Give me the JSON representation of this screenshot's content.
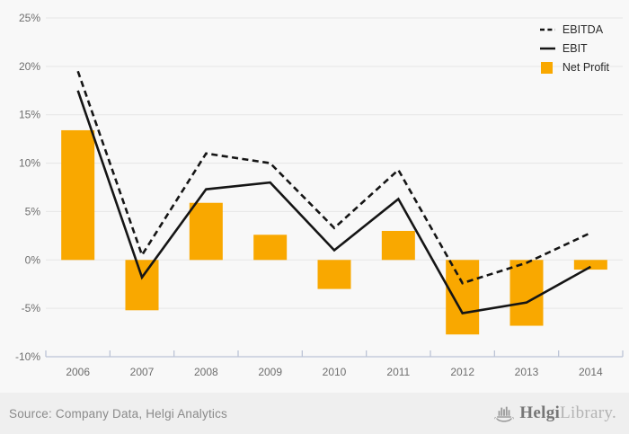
{
  "colors": {
    "background": "#f8f8f8",
    "footer_background": "#efefef",
    "grid": "#e6e6e6",
    "axis_line": "#bcc3d6",
    "bar": "#f9a800",
    "line": "#151515",
    "tick_label": "#6e6e6e",
    "legend_text": "#2b2b2b",
    "source_text": "#8a8a8a",
    "logo_gray": "#9a9a9a",
    "logo_dark": "#767676",
    "logo_light": "#b3b3b3"
  },
  "legend": {
    "position": "top-right",
    "items": [
      {
        "label": "EBITDA",
        "marker": "dashed-line",
        "color": "#151515"
      },
      {
        "label": "EBIT",
        "marker": "solid-line",
        "color": "#151515"
      },
      {
        "label": "Net Profit",
        "marker": "square",
        "color": "#f9a800"
      }
    ]
  },
  "footer": {
    "source": "Source: Company Data, Helgi Analytics",
    "logo": {
      "brand_primary": "Helgi",
      "brand_secondary": "Library."
    }
  },
  "chart_data": {
    "type": "bar",
    "subtype": "bar-line combo",
    "categories": [
      "2006",
      "2007",
      "2008",
      "2009",
      "2010",
      "2011",
      "2012",
      "2013",
      "2014"
    ],
    "series": [
      {
        "name": "EBITDA",
        "type": "line",
        "style": "dashed",
        "color": "#151515",
        "values": [
          19.5,
          0.5,
          11.0,
          10.0,
          3.3,
          9.3,
          -2.4,
          -0.3,
          2.8
        ]
      },
      {
        "name": "EBIT",
        "type": "line",
        "style": "solid",
        "color": "#151515",
        "values": [
          17.5,
          -1.8,
          7.3,
          8.0,
          1.0,
          6.3,
          -5.5,
          -4.4,
          -0.7
        ]
      },
      {
        "name": "Net Profit",
        "type": "bar",
        "color": "#f9a800",
        "values": [
          13.4,
          -5.2,
          5.9,
          2.6,
          -3.0,
          3.0,
          -7.7,
          -6.8,
          -1.0
        ]
      }
    ],
    "ylabel": "",
    "xlabel": "",
    "ylim": [
      -10,
      25
    ],
    "yticks": [
      25,
      20,
      15,
      10,
      5,
      0,
      -5,
      -10
    ],
    "ytick_format": "{value}%",
    "grid": true,
    "legend_position": "top-right",
    "unit": "percent"
  }
}
